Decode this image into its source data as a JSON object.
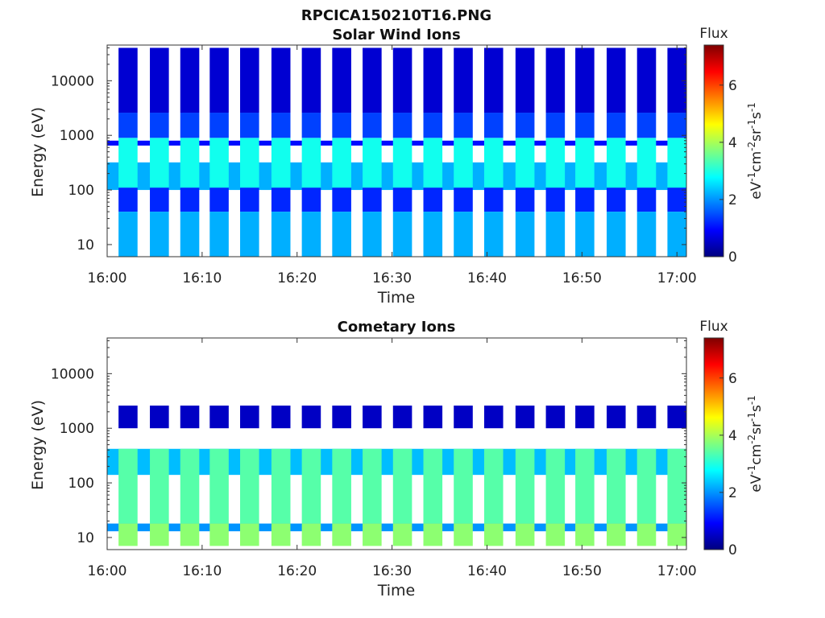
{
  "figure_title": "RPCICA150210T16.PNG",
  "colors": {
    "colormap": [
      "#00007f",
      "#0000ff",
      "#007fff",
      "#00ffff",
      "#7fff7f",
      "#ffff00",
      "#ff7f00",
      "#ff0000",
      "#7f0000"
    ],
    "axis": "#333333"
  },
  "chart_data": [
    {
      "type": "heatmap",
      "title": "Solar Wind Ions",
      "xlabel": "Time",
      "ylabel": "Energy (eV)",
      "x_ticks": [
        "16:00",
        "16:10",
        "16:20",
        "16:30",
        "16:40",
        "16:50",
        "17:00"
      ],
      "x_range_minutes": [
        0,
        61
      ],
      "y_scale": "log",
      "y_ticks": [
        "10",
        "100",
        "1000",
        "10000"
      ],
      "y_range": [
        6,
        45000
      ],
      "colorbar": {
        "title": "Flux",
        "label": "eV-1cm-2sr-1s-1",
        "ticks": [
          "0",
          "2",
          "4",
          "6"
        ],
        "range": [
          0,
          7.4
        ]
      },
      "series": [
        {
          "name": "solar-wind-background",
          "bins": [
            {
              "t_from": 0,
              "t_to": 61,
              "e_from": 100,
              "e_to": 320,
              "flux": 2.2
            },
            {
              "t_from": 0,
              "t_to": 61,
              "e_from": 650,
              "e_to": 800,
              "flux": 1.0
            }
          ]
        },
        {
          "name": "solar-wind-scan-columns",
          "scans": [
            2.2,
            5.5,
            8.7,
            11.8,
            15.0,
            18.3,
            21.5,
            24.7,
            27.9,
            31.1,
            34.3,
            37.5,
            40.7,
            44.0,
            47.2,
            50.3,
            53.6,
            56.8,
            60.0
          ],
          "bands": [
            {
              "e_from": 110,
              "e_to": 900,
              "flux": 2.9
            },
            {
              "e_from": 900,
              "e_to": 2600,
              "flux": 1.4
            },
            {
              "e_from": 2600,
              "e_to": 40000,
              "flux": 0.6
            },
            {
              "e_from": 40,
              "e_to": 110,
              "flux": 1.2
            },
            {
              "e_from": 6,
              "e_to": 40,
              "flux": 2.2
            }
          ]
        }
      ]
    },
    {
      "type": "heatmap",
      "title": "Cometary Ions",
      "xlabel": "Time",
      "ylabel": "Energy (eV)",
      "x_ticks": [
        "16:00",
        "16:10",
        "16:20",
        "16:30",
        "16:40",
        "16:50",
        "17:00"
      ],
      "x_range_minutes": [
        0,
        61
      ],
      "y_scale": "log",
      "y_ticks": [
        "10",
        "100",
        "1000",
        "10000"
      ],
      "y_range": [
        6,
        45000
      ],
      "colorbar": {
        "title": "Flux",
        "label": "eV-1cm-2sr-1s-1",
        "ticks": [
          "0",
          "2",
          "4",
          "6"
        ],
        "range": [
          0,
          7.4
        ]
      },
      "series": [
        {
          "name": "cometary-background",
          "bins": [
            {
              "t_from": 0,
              "t_to": 61,
              "e_from": 140,
              "e_to": 420,
              "flux": 2.3
            },
            {
              "t_from": 0,
              "t_to": 61,
              "e_from": 13,
              "e_to": 18,
              "flux": 2.0
            }
          ]
        },
        {
          "name": "cometary-scan-columns",
          "scans": [
            2.2,
            5.5,
            8.7,
            11.8,
            15.0,
            18.3,
            21.5,
            24.7,
            27.9,
            31.1,
            34.3,
            37.5,
            40.7,
            44.0,
            47.2,
            50.3,
            53.6,
            56.8,
            60.0
          ],
          "bands": [
            {
              "e_from": 18,
              "e_to": 420,
              "flux": 3.4
            },
            {
              "e_from": 7,
              "e_to": 18,
              "flux": 3.8
            },
            {
              "e_from": 1000,
              "e_to": 2600,
              "flux": 0.5
            }
          ]
        }
      ]
    }
  ]
}
